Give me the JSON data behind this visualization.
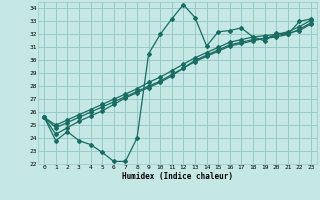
{
  "xlabel": "Humidex (Indice chaleur)",
  "bg_color": "#c5e8e5",
  "grid_color": "#97cbc7",
  "line_color": "#1a6b62",
  "xlim": [
    -0.5,
    23.5
  ],
  "ylim": [
    22,
    34.5
  ],
  "xticks": [
    0,
    1,
    2,
    3,
    4,
    5,
    6,
    7,
    8,
    9,
    10,
    11,
    12,
    13,
    14,
    15,
    16,
    17,
    18,
    19,
    20,
    21,
    22,
    23
  ],
  "yticks": [
    22,
    23,
    24,
    25,
    26,
    27,
    28,
    29,
    30,
    31,
    32,
    33,
    34
  ],
  "series1_y": [
    25.6,
    23.8,
    24.5,
    23.8,
    23.5,
    22.9,
    22.2,
    22.2,
    24.0,
    30.5,
    32.0,
    33.2,
    34.3,
    33.3,
    31.1,
    32.2,
    32.3,
    32.5,
    31.8,
    31.5,
    32.1,
    32.0,
    33.0,
    33.2
  ],
  "series2_y": [
    25.6,
    25.0,
    25.4,
    25.8,
    26.2,
    26.6,
    27.0,
    27.4,
    27.8,
    28.3,
    28.7,
    29.2,
    29.7,
    30.2,
    30.6,
    31.0,
    31.4,
    31.6,
    31.8,
    31.9,
    32.0,
    32.2,
    32.6,
    33.1
  ],
  "series3_y": [
    25.6,
    24.8,
    25.2,
    25.6,
    26.0,
    26.4,
    26.8,
    27.2,
    27.6,
    28.0,
    28.4,
    28.9,
    29.4,
    29.9,
    30.3,
    30.7,
    31.1,
    31.3,
    31.5,
    31.7,
    31.8,
    32.0,
    32.4,
    32.9
  ],
  "series4_y": [
    25.6,
    24.3,
    24.8,
    25.3,
    25.7,
    26.1,
    26.6,
    27.1,
    27.5,
    27.9,
    28.3,
    28.8,
    29.4,
    30.0,
    30.4,
    30.8,
    31.2,
    31.4,
    31.6,
    31.7,
    31.9,
    32.1,
    32.3,
    32.8
  ]
}
